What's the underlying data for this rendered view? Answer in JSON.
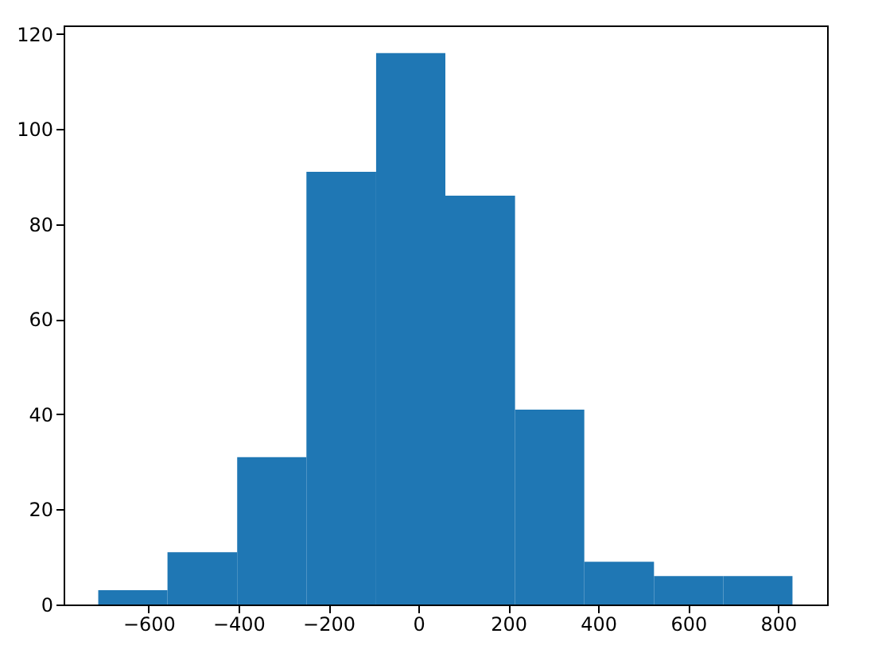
{
  "chart_data": {
    "type": "histogram",
    "color": "#1f77b4",
    "bins": [
      -712,
      -558,
      -403,
      -249,
      -94,
      60,
      215,
      369,
      524,
      678,
      832
    ],
    "values": [
      3,
      11,
      31,
      91,
      116,
      86,
      41,
      9,
      6,
      6
    ],
    "xlim": [
      -789,
      909
    ],
    "xticks": [
      -600,
      -400,
      -200,
      0,
      200,
      400,
      600,
      800
    ],
    "ylim": [
      0,
      121.8
    ],
    "yticks": [
      0,
      20,
      40,
      60,
      80,
      100,
      120
    ],
    "grid": false
  }
}
